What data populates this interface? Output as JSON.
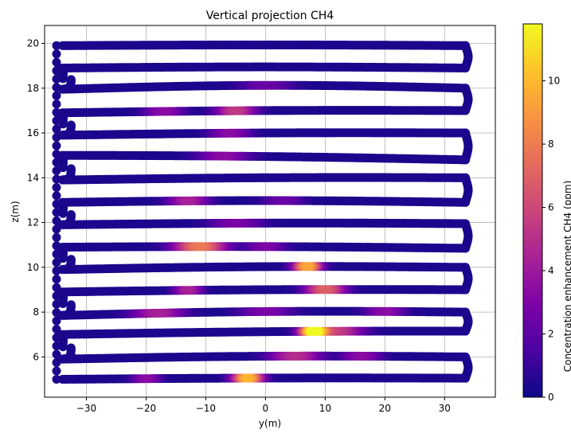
{
  "chart_data": {
    "type": "scatter",
    "title": "Vertical projection CH4",
    "xlabel": "y(m)",
    "ylabel": "z(m)",
    "xlim": [
      -37,
      38.5
    ],
    "ylim": [
      4.2,
      20.8
    ],
    "xticks": [
      -30,
      -20,
      -10,
      0,
      10,
      20,
      30
    ],
    "yticks": [
      6,
      8,
      10,
      12,
      14,
      16,
      18,
      20
    ],
    "grid": true,
    "colormap": "plasma",
    "colorbar": {
      "label": "Concentration enhancement CH4 (ppm)",
      "range": [
        0,
        11.8
      ],
      "ticks": [
        0,
        2,
        4,
        6,
        8,
        10
      ]
    },
    "flight_passes": [
      {
        "z_west": 5.0,
        "z_east": 5.05,
        "bow": 0.03,
        "hotspots": [
          {
            "y": -3,
            "ppm": 9.5,
            "w": 2.2
          },
          {
            "y": -20,
            "ppm": 3,
            "w": 2
          }
        ]
      },
      {
        "z_west": 5.9,
        "z_east": 6.0,
        "bow": 0.08,
        "hotspots": [
          {
            "y": 5,
            "ppm": 4.5,
            "w": 4
          },
          {
            "y": 16,
            "ppm": 3,
            "w": 3
          }
        ]
      },
      {
        "z_west": 7.0,
        "z_east": 7.15,
        "bow": 0.05,
        "hotspots": [
          {
            "y": 8,
            "ppm": 10.5,
            "w": 2
          },
          {
            "y": 12,
            "ppm": 5,
            "w": 4
          }
        ]
      },
      {
        "z_west": 7.85,
        "z_east": 8.0,
        "bow": 0.1,
        "hotspots": [
          {
            "y": -18,
            "ppm": 4,
            "w": 4
          },
          {
            "y": 0,
            "ppm": 2.5,
            "w": 4
          },
          {
            "y": 20,
            "ppm": 3,
            "w": 3
          }
        ]
      },
      {
        "z_west": 8.9,
        "z_east": 9.0,
        "bow": 0.05,
        "hotspots": [
          {
            "y": 10,
            "ppm": 6.5,
            "w": 3
          },
          {
            "y": -13,
            "ppm": 4,
            "w": 2
          }
        ]
      },
      {
        "z_west": 9.9,
        "z_east": 10.0,
        "bow": 0.08,
        "hotspots": [
          {
            "y": 7,
            "ppm": 9,
            "w": 2
          }
        ]
      },
      {
        "z_west": 10.9,
        "z_east": 10.85,
        "bow": 0.05,
        "hotspots": [
          {
            "y": -11,
            "ppm": 7.5,
            "w": 4
          },
          {
            "y": 0,
            "ppm": 2.5,
            "w": 3
          }
        ]
      },
      {
        "z_west": 11.9,
        "z_east": 11.95,
        "bow": 0.05,
        "hotspots": [
          {
            "y": -5,
            "ppm": 2.5,
            "w": 4
          }
        ]
      },
      {
        "z_west": 12.9,
        "z_east": 12.9,
        "bow": 0.08,
        "hotspots": [
          {
            "y": -13,
            "ppm": 4,
            "w": 3
          },
          {
            "y": 3,
            "ppm": 2,
            "w": 3
          }
        ]
      },
      {
        "z_west": 13.9,
        "z_east": 14.0,
        "bow": 0.05,
        "hotspots": []
      },
      {
        "z_west": 15.0,
        "z_east": 14.8,
        "bow": 0.05,
        "hotspots": [
          {
            "y": -7,
            "ppm": 3,
            "w": 4
          }
        ]
      },
      {
        "z_west": 15.9,
        "z_east": 16.0,
        "bow": 0.05,
        "hotspots": [
          {
            "y": -6,
            "ppm": 3,
            "w": 3
          }
        ]
      },
      {
        "z_west": 16.9,
        "z_east": 17.0,
        "bow": 0.05,
        "hotspots": [
          {
            "y": -5,
            "ppm": 5,
            "w": 3
          },
          {
            "y": -17,
            "ppm": 3,
            "w": 3
          }
        ]
      },
      {
        "z_west": 17.95,
        "z_east": 18.0,
        "bow": 0.15,
        "hotspots": [
          {
            "y": 0,
            "ppm": 2,
            "w": 4
          }
        ]
      },
      {
        "z_west": 18.9,
        "z_east": 18.9,
        "bow": 0.05,
        "hotspots": []
      },
      {
        "z_west": 19.9,
        "z_east": 19.9,
        "bow": 0.03,
        "hotspots": []
      }
    ],
    "connector_y_range": [
      -35,
      34.5
    ]
  }
}
